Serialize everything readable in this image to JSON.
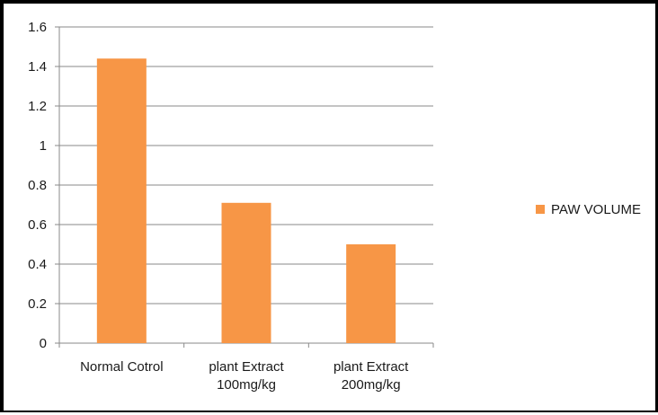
{
  "chart_data": {
    "type": "bar",
    "categories": [
      [
        "Normal Cotrol"
      ],
      [
        "plant Extract",
        "100mg/kg"
      ],
      [
        "plant Extract",
        "200mg/kg"
      ]
    ],
    "series": [
      {
        "name": "PAW VOLUME",
        "values": [
          1.44,
          0.71,
          0.5
        ],
        "color": "#f79646"
      }
    ],
    "title": "",
    "xlabel": "",
    "ylabel": "",
    "ylim": [
      0,
      1.6
    ],
    "yticks": [
      "0",
      "0.2",
      "0.4",
      "0.6",
      "0.8",
      "1",
      "1.2",
      "1.4",
      "1.6"
    ],
    "grid": true,
    "legend_position": "right"
  }
}
